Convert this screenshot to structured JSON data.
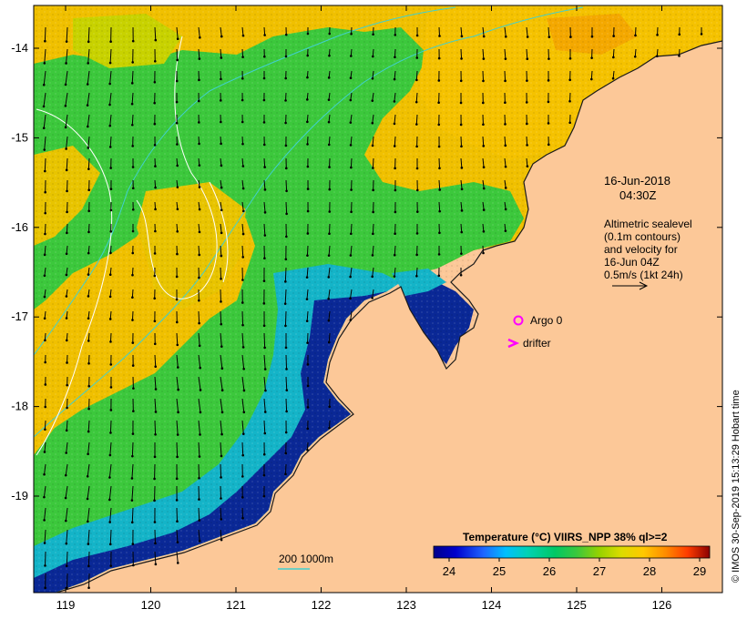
{
  "map": {
    "lon_ticks": [
      "119",
      "120",
      "121",
      "122",
      "123",
      "124",
      "125",
      "126"
    ],
    "lat_ticks": [
      "-14",
      "-15",
      "-16",
      "-17",
      "-18",
      "-19"
    ]
  },
  "timestamp": {
    "date": "16-Jun-2018",
    "time": "04:30Z"
  },
  "altimetry_note": {
    "line1": "Altimetric sealevel",
    "line2": "(0.1m contours)",
    "line3": "and velocity for",
    "line4": "16-Jun 04Z",
    "line5": "0.5m/s (1kt 24h)"
  },
  "legend": {
    "argo_label": "Argo 0",
    "drifter_label": "drifter",
    "argo_color": "#ff00ff",
    "drifter_color": "#ff00ff"
  },
  "bathymetry_label": "200  1000m",
  "colorbar": {
    "title": "Temperature (°C) VIIRS_NPP 38% ql>=2",
    "ticks": [
      "24",
      "25",
      "26",
      "27",
      "28",
      "29"
    ],
    "colors": [
      "#00008b",
      "#0000cd",
      "#1e64ff",
      "#00bfff",
      "#00e5cc",
      "#00c864",
      "#32c832",
      "#96d200",
      "#dcdc00",
      "#ffc800",
      "#ff8c00",
      "#ff4600",
      "#c80000",
      "#8b0000"
    ]
  },
  "credit": "© IMOS 30-Sep-2019 15:13:29 Hobart time",
  "colors": {
    "land": "#fcc898",
    "sea_warm": "#f5c200",
    "sea_mid": "#32c832",
    "sea_cool": "#00b4b4",
    "sea_cold": "#0a2896"
  }
}
